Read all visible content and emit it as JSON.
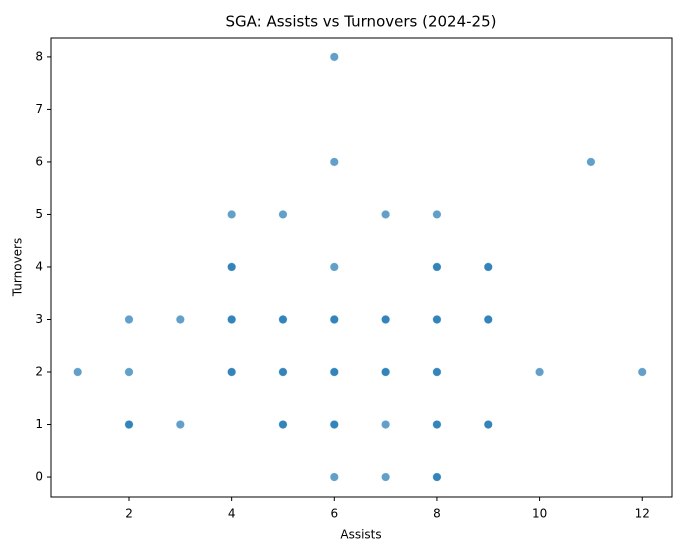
{
  "chart_data": {
    "type": "scatter",
    "title": "SGA: Assists vs Turnovers (2024-25)",
    "x_label": "Assists",
    "y_label": "Turnovers",
    "color": "#1f77b4",
    "alpha": 0.7,
    "x": [
      1,
      2,
      2,
      2,
      2,
      3,
      3,
      4,
      4,
      4,
      4,
      4,
      4,
      4,
      5,
      5,
      5,
      5,
      5,
      5,
      5,
      6,
      6,
      6,
      6,
      6,
      6,
      6,
      6,
      6,
      6,
      7,
      7,
      7,
      7,
      7,
      7,
      7,
      8,
      8,
      8,
      8,
      8,
      8,
      8,
      8,
      8,
      8,
      8,
      9,
      9,
      9,
      9,
      9,
      9,
      10,
      11,
      12
    ],
    "y": [
      2,
      3,
      2,
      1,
      1,
      3,
      1,
      5,
      4,
      4,
      3,
      3,
      2,
      2,
      5,
      3,
      3,
      2,
      2,
      1,
      1,
      8,
      6,
      4,
      3,
      3,
      2,
      2,
      1,
      1,
      0,
      5,
      3,
      3,
      2,
      2,
      1,
      0,
      5,
      4,
      4,
      3,
      3,
      2,
      2,
      1,
      1,
      0,
      0,
      4,
      4,
      3,
      3,
      1,
      1,
      2,
      6,
      2
    ],
    "xlim": [
      0.48,
      12.58
    ],
    "ylim": [
      -0.38,
      8.36
    ],
    "xticks": [
      2,
      4,
      6,
      8,
      10,
      12
    ],
    "yticks": [
      0,
      1,
      2,
      3,
      4,
      5,
      6,
      7,
      8
    ]
  }
}
